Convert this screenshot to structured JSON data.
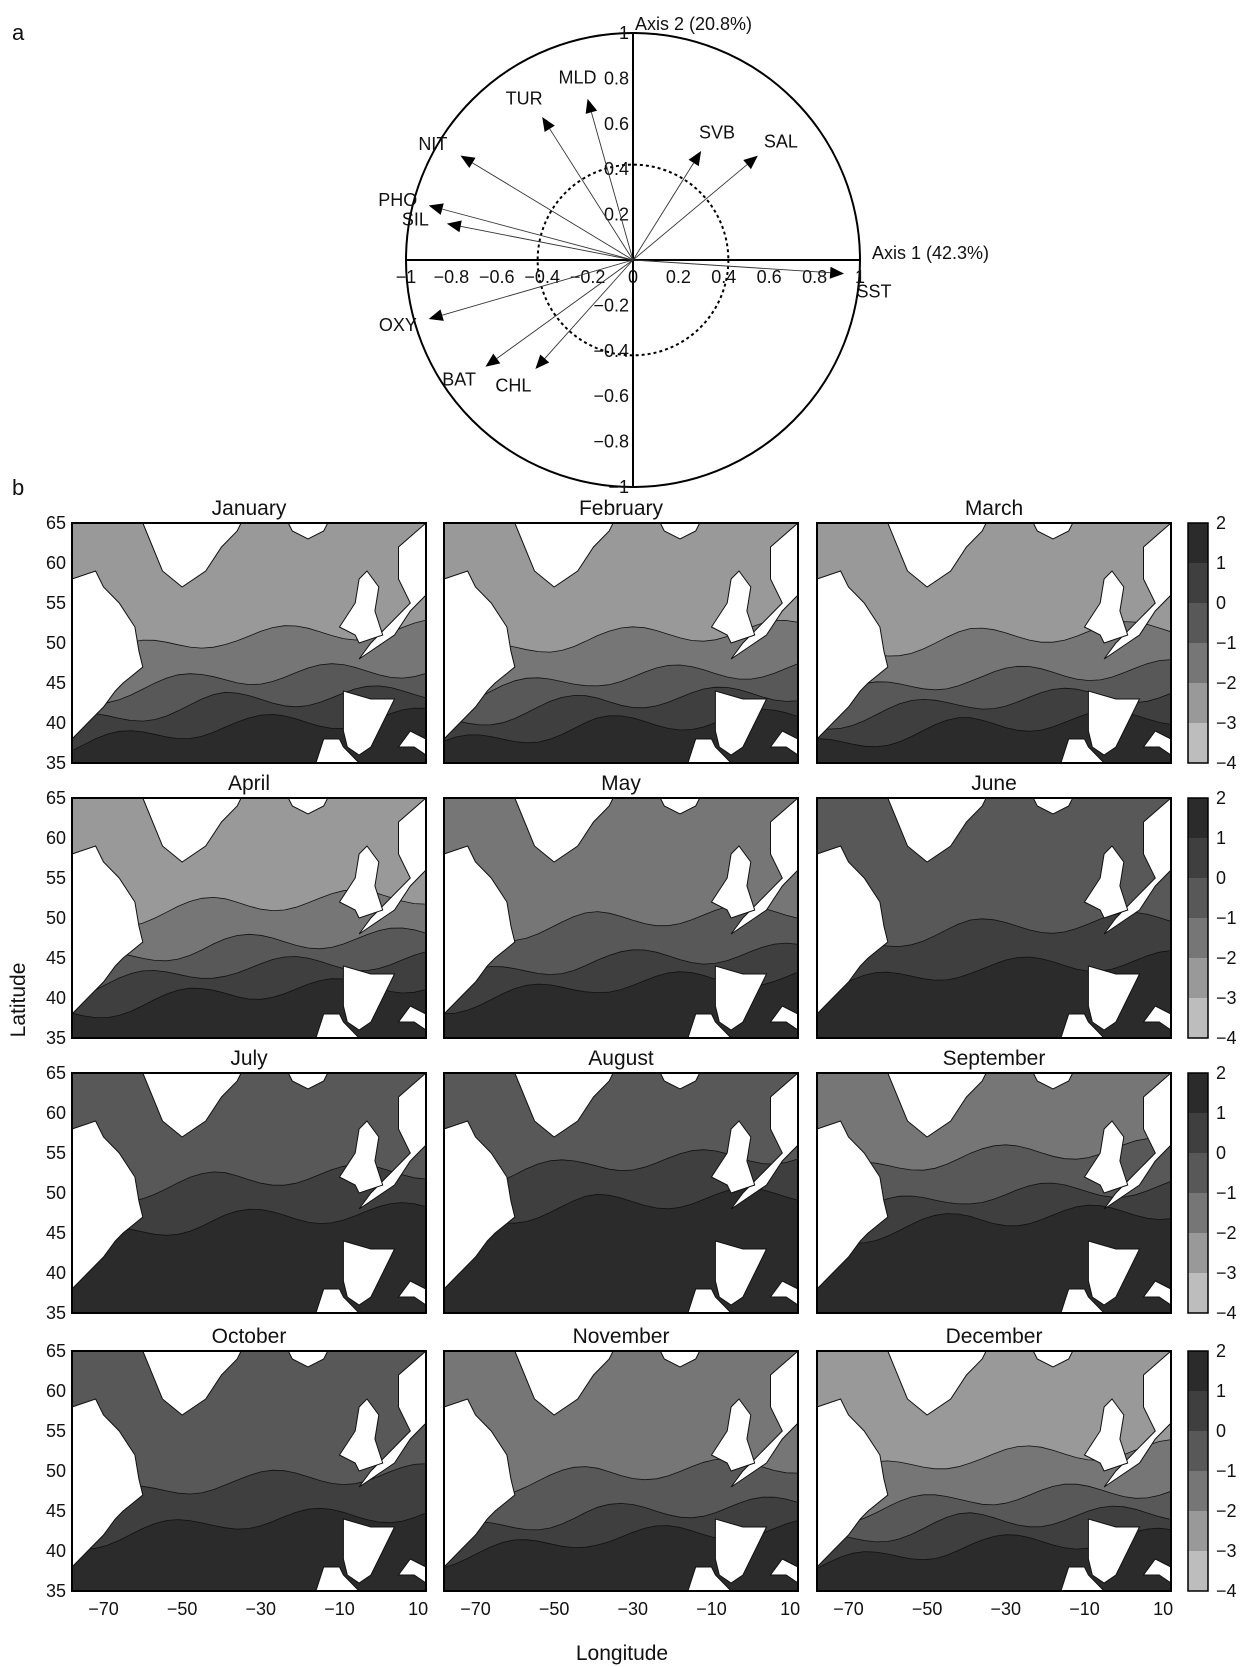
{
  "panel_a": {
    "letter": "a",
    "chart_data": {
      "type": "scatter",
      "subtype": "correlation-circle",
      "xlabel": "Axis 1 (42.3%)",
      "ylabel": "Axis 2 (20.8%)",
      "xlim": [
        -1,
        1
      ],
      "ylim": [
        -1,
        1
      ],
      "x_ticks": [
        "−1",
        "−0.8",
        "−0.6",
        "−0.4",
        "−0.2",
        "0",
        "0.2",
        "0.4",
        "0.6",
        "0.8",
        "1"
      ],
      "y_ticks": [
        "1",
        "0.8",
        "0.6",
        "0.4",
        "0.2",
        "−0.2",
        "−0.4",
        "−0.6",
        "−0.8",
        "−1"
      ],
      "inner_circle_radius": 0.42,
      "vectors": [
        {
          "label": "SST",
          "x": 0.93,
          "y": -0.06
        },
        {
          "label": "SAL",
          "x": 0.55,
          "y": 0.46
        },
        {
          "label": "SVB",
          "x": 0.3,
          "y": 0.48
        },
        {
          "label": "MLD",
          "x": -0.2,
          "y": 0.71
        },
        {
          "label": "TUR",
          "x": -0.4,
          "y": 0.63
        },
        {
          "label": "NIT",
          "x": -0.76,
          "y": 0.46
        },
        {
          "label": "PHO",
          "x": -0.9,
          "y": 0.24
        },
        {
          "label": "SIL",
          "x": -0.82,
          "y": 0.16
        },
        {
          "label": "OXY",
          "x": -0.9,
          "y": -0.26
        },
        {
          "label": "BAT",
          "x": -0.65,
          "y": -0.47
        },
        {
          "label": "CHL",
          "x": -0.43,
          "y": -0.48
        }
      ]
    }
  },
  "panel_b": {
    "letter": "b",
    "xlabel": "Longitude",
    "ylabel": "Latitude",
    "x_ticks": [
      "−70",
      "−50",
      "−30",
      "−10",
      "10"
    ],
    "y_ticks": [
      "65",
      "60",
      "55",
      "50",
      "45",
      "40",
      "35"
    ],
    "colorbar": {
      "ticks": [
        "2",
        "1",
        "0",
        "−1",
        "−2",
        "−3",
        "−4"
      ],
      "colors": [
        "#2b2b2b",
        "#3f3f3f",
        "#585858",
        "#767676",
        "#999999",
        "#bdbdbd",
        "#dfdfdf"
      ]
    },
    "chart_data": {
      "type": "heatmap",
      "xlim": [
        -78,
        12
      ],
      "ylim": [
        35,
        65
      ],
      "levels": [
        -4,
        -3,
        -2,
        -1,
        0,
        1,
        2
      ],
      "months": [
        {
          "name": "January",
          "polar_level": -2,
          "front_lat": 44
        },
        {
          "name": "February",
          "polar_level": -2,
          "front_lat": 44
        },
        {
          "name": "March",
          "polar_level": -2,
          "front_lat": 44
        },
        {
          "name": "April",
          "polar_level": -2,
          "front_lat": 45
        },
        {
          "name": "May",
          "polar_level": -1,
          "front_lat": 46
        },
        {
          "name": "June",
          "polar_level": 0,
          "front_lat": 48
        },
        {
          "name": "July",
          "polar_level": 0,
          "front_lat": 51
        },
        {
          "name": "August",
          "polar_level": 0,
          "front_lat": 53
        },
        {
          "name": "September",
          "polar_level": -1,
          "front_lat": 51
        },
        {
          "name": "October",
          "polar_level": 0,
          "front_lat": 48
        },
        {
          "name": "November",
          "polar_level": -1,
          "front_lat": 46
        },
        {
          "name": "December",
          "polar_level": -2,
          "front_lat": 45
        }
      ]
    }
  }
}
